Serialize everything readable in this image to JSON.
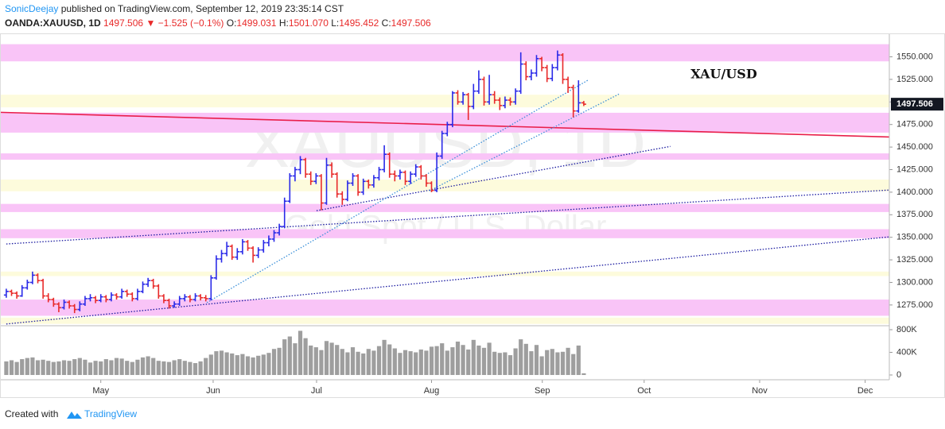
{
  "header": {
    "author": "SonicDeejay",
    "byline": "published on TradingView.com, September 12, 2019 23:35:14 CST",
    "symbol": "OANDA:XAUUSD, 1D",
    "last": "1497.506",
    "arrow": "▼",
    "change": "−1.525 (−0.1%)",
    "open_label": "O:",
    "open": "1499.031",
    "high_label": "H:",
    "high": "1501.070",
    "low_label": "L:",
    "low": "1495.452",
    "close_label": "C:",
    "close": "1497.506"
  },
  "chart_data": {
    "type": "ohlc",
    "watermark": "XAUUSD, 1D",
    "watermark_sub": "Gold Spot / U.S. Dollar",
    "annotation": "XAU/USD",
    "up_color": "#2a2ae8",
    "down_color": "#e82a2a",
    "volume_color": "#9e9e9e",
    "xlim": [
      -1.2,
      168.2
    ],
    "xticks": [
      {
        "value": 18,
        "label": "May"
      },
      {
        "value": 39.4,
        "label": "Jun"
      },
      {
        "value": 59.1,
        "label": "Jul"
      },
      {
        "value": 81,
        "label": "Aug"
      },
      {
        "value": 102.1,
        "label": "Sep"
      },
      {
        "value": 121.5,
        "label": "Oct"
      },
      {
        "value": 143.5,
        "label": "Nov"
      },
      {
        "value": 163.6,
        "label": "Dec"
      }
    ],
    "ylim": [
      1252,
      1576
    ],
    "yticks": [
      {
        "value": 1275,
        "label": "1275.000"
      },
      {
        "value": 1300,
        "label": "1300.000"
      },
      {
        "value": 1325,
        "label": "1325.000"
      },
      {
        "value": 1350,
        "label": "1350.000"
      },
      {
        "value": 1375,
        "label": "1375.000"
      },
      {
        "value": 1400,
        "label": "1400.000"
      },
      {
        "value": 1425,
        "label": "1425.000"
      },
      {
        "value": 1450,
        "label": "1450.000"
      },
      {
        "value": 1475,
        "label": "1475.000"
      },
      {
        "value": 1500,
        "label": "1500.000"
      },
      {
        "value": 1525,
        "label": "1525.000"
      },
      {
        "value": 1550,
        "label": "1550.000"
      }
    ],
    "last_price": {
      "value": 1497.506,
      "label": "1497.506"
    },
    "volume_ylim": [
      -84,
      870
    ],
    "volume_ticks": [
      0,
      {
        "value": 400,
        "label": "400K"
      },
      {
        "value": 800,
        "label": "800K"
      }
    ],
    "zones": [
      {
        "range": [
          1545,
          1564
        ],
        "color": "#f9c4f7"
      },
      {
        "range": [
          1494,
          1508
        ],
        "color": "#fdfbdc"
      },
      {
        "range": [
          1466,
          1488
        ],
        "color": "#f9c4f7"
      },
      {
        "range": [
          1436,
          1443
        ],
        "color": "#f9c4f7"
      },
      {
        "range": [
          1401,
          1414
        ],
        "color": "#fdfbdc"
      },
      {
        "range": [
          1378,
          1387
        ],
        "color": "#f9c4f7"
      },
      {
        "range": [
          1349,
          1359
        ],
        "color": "#f9c4f7"
      },
      {
        "range": [
          1307,
          1312
        ],
        "color": "#fdfbdc"
      },
      {
        "range": [
          1263,
          1281
        ],
        "color": "#f9c4f7"
      },
      {
        "range": [
          1254,
          1261
        ],
        "color": "#fdfbdc"
      }
    ],
    "trendlines": [
      {
        "from": [
          -1.2,
          1488.5
        ],
        "to": [
          168.2,
          1461.2
        ],
        "color": "#e91e4a",
        "dash": false
      },
      {
        "from": [
          0,
          1253.9
        ],
        "to": [
          168.2,
          1350.5
        ],
        "color": "#1a1aa0",
        "dash": true
      },
      {
        "from": [
          0,
          1342.6
        ],
        "to": [
          168.2,
          1402.4
        ],
        "color": "#1a1aa0",
        "dash": true
      },
      {
        "from": [
          59.1,
          1379.5
        ],
        "to": [
          126.5,
          1450.7
        ],
        "color": "#1a1aa0",
        "dash": true
      },
      {
        "from": [
          38.2,
          1277.6
        ],
        "to": [
          110.9,
          1524.5
        ],
        "color": "#3a8fd8",
        "dash": true
      },
      {
        "from": [
          80.6,
          1401.5
        ],
        "to": [
          116.7,
          1508.7
        ],
        "color": "#3a8fd8",
        "dash": true
      }
    ],
    "bars": [
      [
        1286,
        1293,
        1283,
        1290
      ],
      [
        1290,
        1292,
        1285,
        1288
      ],
      [
        1288,
        1290,
        1282,
        1285
      ],
      [
        1285,
        1297,
        1284,
        1294
      ],
      [
        1294,
        1303,
        1292,
        1300
      ],
      [
        1300,
        1312,
        1298,
        1308
      ],
      [
        1308,
        1310,
        1299,
        1302
      ],
      [
        1302,
        1304,
        1282,
        1285
      ],
      [
        1285,
        1288,
        1278,
        1281
      ],
      [
        1281,
        1283,
        1273,
        1276
      ],
      [
        1276,
        1278,
        1267,
        1272
      ],
      [
        1272,
        1281,
        1270,
        1278
      ],
      [
        1278,
        1280,
        1271,
        1274
      ],
      [
        1274,
        1276,
        1266,
        1270
      ],
      [
        1270,
        1279,
        1268,
        1276
      ],
      [
        1276,
        1285,
        1274,
        1282
      ],
      [
        1282,
        1287,
        1279,
        1283
      ],
      [
        1283,
        1285,
        1277,
        1280
      ],
      [
        1280,
        1287,
        1278,
        1284
      ],
      [
        1284,
        1286,
        1278,
        1281
      ],
      [
        1281,
        1289,
        1279,
        1286
      ],
      [
        1286,
        1288,
        1281,
        1284
      ],
      [
        1284,
        1293,
        1282,
        1290
      ],
      [
        1290,
        1292,
        1284,
        1287
      ],
      [
        1287,
        1289,
        1279,
        1282
      ],
      [
        1282,
        1293,
        1280,
        1290
      ],
      [
        1290,
        1301,
        1288,
        1298
      ],
      [
        1298,
        1305,
        1295,
        1302
      ],
      [
        1302,
        1304,
        1293,
        1296
      ],
      [
        1296,
        1298,
        1282,
        1285
      ],
      [
        1285,
        1287,
        1277,
        1280
      ],
      [
        1280,
        1282,
        1271,
        1274
      ],
      [
        1274,
        1279,
        1272,
        1276
      ],
      [
        1276,
        1285,
        1274,
        1282
      ],
      [
        1282,
        1287,
        1279,
        1284
      ],
      [
        1284,
        1286,
        1278,
        1281
      ],
      [
        1281,
        1288,
        1279,
        1285
      ],
      [
        1285,
        1287,
        1280,
        1283
      ],
      [
        1283,
        1286,
        1279,
        1282
      ],
      [
        1282,
        1308,
        1280,
        1305
      ],
      [
        1305,
        1330,
        1303,
        1326
      ],
      [
        1326,
        1336,
        1322,
        1332
      ],
      [
        1332,
        1345,
        1329,
        1340
      ],
      [
        1340,
        1342,
        1325,
        1328
      ],
      [
        1328,
        1338,
        1325,
        1334
      ],
      [
        1334,
        1348,
        1331,
        1345
      ],
      [
        1345,
        1347,
        1335,
        1338
      ],
      [
        1338,
        1340,
        1322,
        1330
      ],
      [
        1330,
        1339,
        1327,
        1336
      ],
      [
        1336,
        1347,
        1333,
        1344
      ],
      [
        1344,
        1352,
        1340,
        1348
      ],
      [
        1348,
        1358,
        1345,
        1355
      ],
      [
        1355,
        1365,
        1352,
        1362
      ],
      [
        1362,
        1394,
        1360,
        1390
      ],
      [
        1390,
        1421,
        1388,
        1418
      ],
      [
        1418,
        1428,
        1412,
        1425
      ],
      [
        1425,
        1440,
        1420,
        1436
      ],
      [
        1436,
        1438,
        1416,
        1420
      ],
      [
        1420,
        1423,
        1408,
        1412
      ],
      [
        1412,
        1421,
        1409,
        1418
      ],
      [
        1418,
        1420,
        1380,
        1388
      ],
      [
        1388,
        1438,
        1386,
        1430
      ],
      [
        1430,
        1433,
        1416,
        1420
      ],
      [
        1420,
        1422,
        1394,
        1398
      ],
      [
        1398,
        1401,
        1386,
        1392
      ],
      [
        1392,
        1413,
        1390,
        1410
      ],
      [
        1410,
        1421,
        1407,
        1418
      ],
      [
        1418,
        1420,
        1396,
        1400
      ],
      [
        1400,
        1415,
        1397,
        1412
      ],
      [
        1412,
        1414,
        1404,
        1408
      ],
      [
        1408,
        1419,
        1405,
        1416
      ],
      [
        1416,
        1428,
        1413,
        1425
      ],
      [
        1425,
        1452,
        1422,
        1442
      ],
      [
        1442,
        1444,
        1416,
        1420
      ],
      [
        1420,
        1424,
        1412,
        1418
      ],
      [
        1418,
        1425,
        1414,
        1422
      ],
      [
        1422,
        1424,
        1408,
        1412
      ],
      [
        1412,
        1423,
        1409,
        1420
      ],
      [
        1420,
        1431,
        1417,
        1428
      ],
      [
        1428,
        1430,
        1414,
        1418
      ],
      [
        1418,
        1420,
        1406,
        1410
      ],
      [
        1410,
        1412,
        1400,
        1402
      ],
      [
        1402,
        1444,
        1400,
        1440
      ],
      [
        1440,
        1468,
        1437,
        1465
      ],
      [
        1465,
        1478,
        1462,
        1475
      ],
      [
        1475,
        1512,
        1472,
        1510
      ],
      [
        1510,
        1513,
        1497,
        1500
      ],
      [
        1500,
        1511,
        1497,
        1508
      ],
      [
        1508,
        1510,
        1480,
        1495
      ],
      [
        1495,
        1520,
        1492,
        1512
      ],
      [
        1512,
        1535,
        1509,
        1525
      ],
      [
        1525,
        1528,
        1496,
        1500
      ],
      [
        1500,
        1530,
        1497,
        1508
      ],
      [
        1508,
        1512,
        1498,
        1502
      ],
      [
        1502,
        1505,
        1491,
        1496
      ],
      [
        1496,
        1506,
        1493,
        1502
      ],
      [
        1502,
        1505,
        1496,
        1500
      ],
      [
        1500,
        1515,
        1497,
        1512
      ],
      [
        1512,
        1555,
        1509,
        1542
      ],
      [
        1542,
        1545,
        1524,
        1528
      ],
      [
        1528,
        1536,
        1524,
        1532
      ],
      [
        1532,
        1552,
        1528,
        1548
      ],
      [
        1548,
        1550,
        1534,
        1538
      ],
      [
        1538,
        1541,
        1522,
        1526
      ],
      [
        1526,
        1542,
        1523,
        1538
      ],
      [
        1538,
        1557,
        1535,
        1552
      ],
      [
        1552,
        1554,
        1520,
        1525
      ],
      [
        1525,
        1528,
        1510,
        1516
      ],
      [
        1516,
        1519,
        1483,
        1490
      ],
      [
        1490,
        1524,
        1488,
        1499
      ],
      [
        1499.031,
        1501.07,
        1495.452,
        1497.506
      ]
    ],
    "volume": [
      240,
      260,
      230,
      280,
      300,
      310,
      260,
      270,
      250,
      230,
      240,
      260,
      250,
      280,
      300,
      270,
      220,
      250,
      240,
      280,
      260,
      300,
      290,
      250,
      230,
      270,
      310,
      330,
      300,
      250,
      240,
      230,
      260,
      280,
      250,
      230,
      210,
      240,
      300,
      360,
      420,
      430,
      400,
      380,
      350,
      370,
      330,
      310,
      340,
      360,
      390,
      460,
      480,
      630,
      680,
      560,
      780,
      650,
      520,
      490,
      440,
      600,
      570,
      530,
      460,
      400,
      490,
      410,
      380,
      460,
      430,
      510,
      620,
      540,
      470,
      390,
      440,
      420,
      400,
      450,
      430,
      500,
      510,
      560,
      430,
      490,
      590,
      530,
      450,
      620,
      520,
      480,
      570,
      410,
      390,
      400,
      350,
      470,
      630,
      550,
      420,
      530,
      330,
      440,
      460,
      400,
      410,
      480,
      370,
      520,
      30
    ]
  },
  "footer": {
    "created": "Created with",
    "brand": "TradingView"
  }
}
